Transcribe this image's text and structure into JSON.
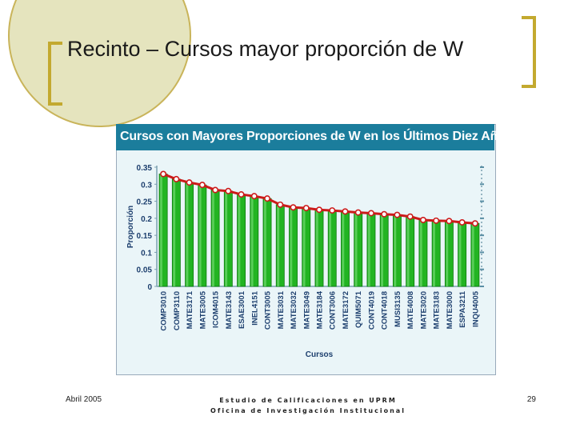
{
  "slide": {
    "title": "Recinto – Cursos mayor proporción de W",
    "footer_left": "Abril 2005",
    "footer_center_line1": "Estudio de Calificaciones en UPRM",
    "footer_center_line2": "Oficina de Investigación Institucional",
    "footer_right": "29"
  },
  "colors": {
    "bar": "#22b422",
    "bar_dark": "#0c7a0c",
    "line": "#cc1a1a",
    "header": "#1b7d9c",
    "accent": "#c3a92f"
  },
  "chart_data": {
    "type": "bar",
    "title": "Cursos con Mayores Proporciones de W en los Últimos Diez Años",
    "xlabel": "Cursos",
    "ylabel": "Proporción",
    "ylim": [
      0,
      0.35
    ],
    "yticks": [
      "0.35",
      "0.3",
      "0.25",
      "0.2",
      "0.15",
      "0.1",
      "0.05",
      "0"
    ],
    "grid": false,
    "overlay_line": true,
    "categories": [
      "COMP3010",
      "COMP3110",
      "MATE3171",
      "MATE3005",
      "ICOM4015",
      "MATE3143",
      "ESAE3001",
      "INEL4151",
      "CONT3005",
      "MATE3031",
      "MATE3032",
      "MATE3049",
      "MATE3184",
      "CONT3006",
      "MATE3172",
      "QUIM5071",
      "CONT4019",
      "CONT4018",
      "MUSI3135",
      "MATE4008",
      "MATE3020",
      "MATE3183",
      "MATE3000",
      "ESPA3211",
      "INQU4005"
    ],
    "values": [
      0.33,
      0.315,
      0.305,
      0.298,
      0.283,
      0.28,
      0.27,
      0.265,
      0.258,
      0.24,
      0.232,
      0.23,
      0.225,
      0.223,
      0.22,
      0.217,
      0.215,
      0.212,
      0.21,
      0.205,
      0.195,
      0.193,
      0.192,
      0.188,
      0.185
    ]
  }
}
